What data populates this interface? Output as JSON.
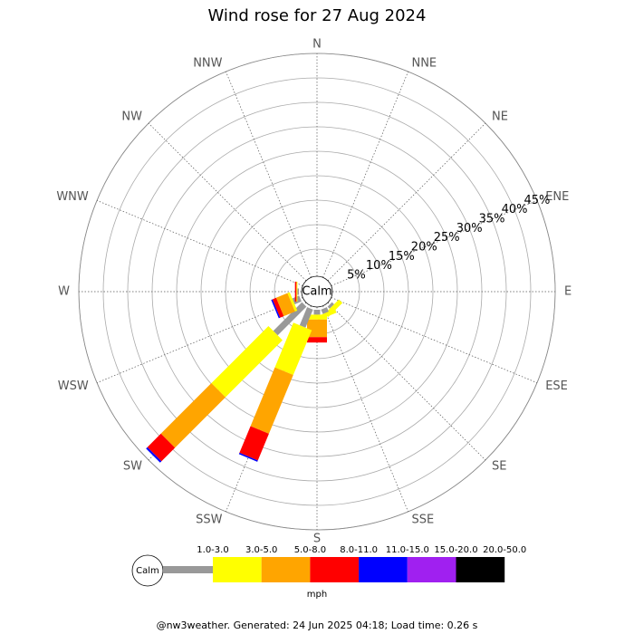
{
  "chart_data": {
    "type": "windrose",
    "title": "Wind rose for 27 Aug 2024",
    "categories": [
      "N",
      "NNE",
      "NE",
      "ENE",
      "E",
      "ESE",
      "SE",
      "SSE",
      "S",
      "SSW",
      "SW",
      "WSW",
      "W",
      "WNW",
      "NW",
      "NNW"
    ],
    "calm_label": "Calm",
    "unit_label": "mph",
    "footer": "@nw3weather. Generated: 24 Jun 2025 04:18; Load time: 0.26 s",
    "rlim": [
      0,
      45
    ],
    "rticks": [
      {
        "value": 5,
        "label": "5%"
      },
      {
        "value": 10,
        "label": "10%"
      },
      {
        "value": 15,
        "label": "15%"
      },
      {
        "value": 20,
        "label": "20%"
      },
      {
        "value": 25,
        "label": "25%"
      },
      {
        "value": 30,
        "label": "30%"
      },
      {
        "value": 35,
        "label": "35%"
      },
      {
        "value": 40,
        "label": "40%"
      },
      {
        "value": 45,
        "label": "45%"
      }
    ],
    "series": [
      {
        "name": "1.0-3.0",
        "color": "#999999",
        "values": [
          0,
          0,
          0,
          0,
          0,
          0,
          0.6,
          1,
          1,
          4,
          8.3,
          1.5,
          0.3,
          0,
          0,
          0
        ]
      },
      {
        "name": "3.0-5.0",
        "color": "#ffff00",
        "values": [
          0,
          0,
          0,
          0,
          0,
          0,
          1,
          0.8,
          1,
          9.9,
          16.5,
          0.5,
          0.2,
          0,
          0,
          0
        ]
      },
      {
        "name": "5.0-8.0",
        "color": "#ffa500",
        "values": [
          0,
          0,
          0,
          0,
          0,
          0,
          0,
          0,
          3.6,
          13,
          14.6,
          2.5,
          0,
          0,
          0,
          0
        ]
      },
      {
        "name": "8.0-11.0",
        "color": "#ff0000",
        "values": [
          0,
          0,
          0,
          0,
          0,
          0,
          0,
          0,
          1.1,
          5.9,
          3.9,
          0.8,
          0.3,
          0,
          0,
          0
        ]
      },
      {
        "name": "11.0-15.0",
        "color": "#0000ff",
        "values": [
          0,
          0,
          0,
          0,
          0,
          0,
          0,
          0,
          0,
          0.3,
          0.4,
          0.3,
          0,
          0,
          0,
          0
        ]
      },
      {
        "name": "15.0-20.0",
        "color": "#a020f0",
        "values": [
          0,
          0,
          0,
          0,
          0,
          0,
          0,
          0,
          0,
          0,
          0,
          0,
          0,
          0,
          0,
          0
        ]
      },
      {
        "name": "20.0-50.0",
        "color": "#000000",
        "values": [
          0,
          0,
          0,
          0,
          0,
          0,
          0,
          0,
          0,
          0,
          0,
          0,
          0,
          0,
          0,
          0
        ]
      }
    ]
  }
}
